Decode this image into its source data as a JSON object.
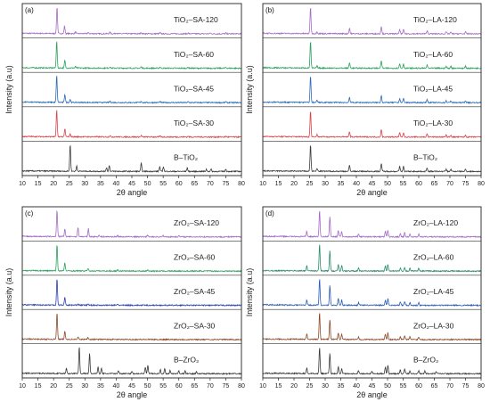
{
  "chart_data": [
    {
      "type": "line",
      "panel_tag": "(a)",
      "xlabel": "2θ angle",
      "ylabel": "Intensity (a.u)",
      "xlim": [
        10,
        80
      ],
      "xticks": [
        10,
        15,
        20,
        25,
        30,
        35,
        40,
        45,
        50,
        55,
        60,
        65,
        70,
        75,
        80
      ],
      "series": [
        {
          "name": "TiO₂–SA-120",
          "color": "#a56bc8",
          "peaks": [
            [
              21.1,
              1.0
            ],
            [
              23.5,
              0.28
            ],
            [
              27.0,
              0.06
            ],
            [
              31.0,
              0.04
            ],
            [
              38.0,
              0.05
            ],
            [
              40.0,
              0.04
            ],
            [
              48.0,
              0.05
            ],
            [
              54.0,
              0.04
            ],
            [
              63.0,
              0.03
            ],
            [
              70.0,
              0.03
            ],
            [
              75.0,
              0.03
            ]
          ]
        },
        {
          "name": "TiO₂–SA-60",
          "color": "#2ba35c",
          "peaks": [
            [
              21.0,
              1.0
            ],
            [
              23.6,
              0.28
            ],
            [
              27.0,
              0.05
            ],
            [
              38.0,
              0.05
            ],
            [
              48.0,
              0.05
            ],
            [
              54.0,
              0.04
            ],
            [
              63.0,
              0.03
            ],
            [
              75.0,
              0.03
            ]
          ]
        },
        {
          "name": "TiO₂–SA-45",
          "color": "#2a6cb8",
          "peaks": [
            [
              21.0,
              1.0
            ],
            [
              23.6,
              0.3
            ],
            [
              25.3,
              0.12
            ],
            [
              38.0,
              0.05
            ],
            [
              48.0,
              0.05
            ],
            [
              54.0,
              0.04
            ],
            [
              63.0,
              0.03
            ],
            [
              75.0,
              0.03
            ]
          ]
        },
        {
          "name": "TiO₂–SA-30",
          "color": "#d9434a",
          "peaks": [
            [
              21.0,
              1.0
            ],
            [
              23.6,
              0.3
            ],
            [
              25.3,
              0.1
            ],
            [
              38.0,
              0.05
            ],
            [
              48.0,
              0.05
            ],
            [
              54.0,
              0.04
            ],
            [
              63.0,
              0.03
            ],
            [
              75.0,
              0.03
            ]
          ]
        },
        {
          "name": "B–TiO₂",
          "color": "#3a3a3a",
          "peaks": [
            [
              25.3,
              1.0
            ],
            [
              27.4,
              0.2
            ],
            [
              36.9,
              0.14
            ],
            [
              37.8,
              0.22
            ],
            [
              48.0,
              0.3
            ],
            [
              53.9,
              0.18
            ],
            [
              55.1,
              0.18
            ],
            [
              62.7,
              0.14
            ],
            [
              68.8,
              0.08
            ],
            [
              70.3,
              0.08
            ],
            [
              75.0,
              0.08
            ]
          ]
        }
      ]
    },
    {
      "type": "line",
      "panel_tag": "(b)",
      "xlabel": "2θ angle",
      "ylabel": "Intensity (a.u)",
      "xlim": [
        10,
        80
      ],
      "xticks": [
        10,
        15,
        20,
        25,
        30,
        35,
        40,
        45,
        50,
        55,
        60,
        65,
        70,
        75,
        80
      ],
      "series": [
        {
          "name": "TiO₂–LA-120",
          "color": "#a56bc8",
          "peaks": [
            [
              25.3,
              1.0
            ],
            [
              27.4,
              0.08
            ],
            [
              37.8,
              0.2
            ],
            [
              48.0,
              0.28
            ],
            [
              53.9,
              0.16
            ],
            [
              55.1,
              0.16
            ],
            [
              62.7,
              0.12
            ],
            [
              68.8,
              0.07
            ],
            [
              70.3,
              0.07
            ],
            [
              75.0,
              0.07
            ]
          ]
        },
        {
          "name": "TiO₂–LA-60",
          "color": "#2ba35c",
          "peaks": [
            [
              25.3,
              1.0
            ],
            [
              27.4,
              0.08
            ],
            [
              37.8,
              0.2
            ],
            [
              48.0,
              0.28
            ],
            [
              53.9,
              0.16
            ],
            [
              55.1,
              0.16
            ],
            [
              62.7,
              0.12
            ],
            [
              68.8,
              0.07
            ],
            [
              70.3,
              0.07
            ],
            [
              75.0,
              0.07
            ]
          ]
        },
        {
          "name": "TiO₂–LA-45",
          "color": "#2a6cb8",
          "peaks": [
            [
              25.3,
              1.0
            ],
            [
              27.4,
              0.08
            ],
            [
              37.8,
              0.2
            ],
            [
              48.0,
              0.28
            ],
            [
              53.9,
              0.16
            ],
            [
              55.1,
              0.16
            ],
            [
              62.7,
              0.12
            ],
            [
              68.8,
              0.07
            ],
            [
              70.3,
              0.07
            ],
            [
              75.0,
              0.07
            ]
          ]
        },
        {
          "name": "TiO₂–LA-30",
          "color": "#d9434a",
          "peaks": [
            [
              25.3,
              1.0
            ],
            [
              27.4,
              0.08
            ],
            [
              37.8,
              0.2
            ],
            [
              48.0,
              0.28
            ],
            [
              53.9,
              0.16
            ],
            [
              55.1,
              0.16
            ],
            [
              62.7,
              0.12
            ],
            [
              68.8,
              0.07
            ],
            [
              70.3,
              0.07
            ],
            [
              75.0,
              0.07
            ]
          ]
        },
        {
          "name": "B–TiO₂",
          "color": "#3a3a3a",
          "peaks": [
            [
              25.3,
              1.0
            ],
            [
              27.4,
              0.1
            ],
            [
              37.8,
              0.22
            ],
            [
              48.0,
              0.3
            ],
            [
              53.9,
              0.18
            ],
            [
              55.1,
              0.18
            ],
            [
              62.7,
              0.14
            ],
            [
              68.8,
              0.08
            ],
            [
              70.3,
              0.08
            ],
            [
              75.0,
              0.08
            ]
          ]
        }
      ]
    },
    {
      "type": "line",
      "panel_tag": "(c)",
      "xlabel": "2θ angle",
      "ylabel": "Intensity (a.u)",
      "xlim": [
        10,
        80
      ],
      "xticks": [
        10,
        15,
        20,
        25,
        30,
        35,
        40,
        45,
        50,
        55,
        60,
        65,
        70,
        75,
        80
      ],
      "series": [
        {
          "name": "ZrO₂–SA-120",
          "color": "#a56bc8",
          "peaks": [
            [
              21.1,
              1.0
            ],
            [
              23.6,
              0.3
            ],
            [
              27.8,
              0.35
            ],
            [
              31.1,
              0.3
            ],
            [
              34.5,
              0.06
            ],
            [
              40.5,
              0.05
            ],
            [
              50.0,
              0.06
            ],
            [
              55.0,
              0.04
            ],
            [
              60.0,
              0.04
            ]
          ]
        },
        {
          "name": "ZrO₂–SA-60",
          "color": "#2ba35c",
          "peaks": [
            [
              21.1,
              1.0
            ],
            [
              23.6,
              0.3
            ],
            [
              31.0,
              0.1
            ],
            [
              40.5,
              0.04
            ],
            [
              50.0,
              0.04
            ]
          ]
        },
        {
          "name": "ZrO₂–SA-45",
          "color": "#2a3fb8",
          "peaks": [
            [
              21.1,
              1.0
            ],
            [
              23.6,
              0.3
            ],
            [
              27.8,
              0.05
            ],
            [
              31.0,
              0.05
            ],
            [
              40.5,
              0.04
            ]
          ]
        },
        {
          "name": "ZrO₂–SA-30",
          "color": "#8b4a2a",
          "peaks": [
            [
              21.1,
              1.0
            ],
            [
              23.6,
              0.3
            ],
            [
              27.8,
              0.08
            ],
            [
              31.0,
              0.08
            ]
          ]
        },
        {
          "name": "B–ZrO₂",
          "color": "#3a3a3a",
          "peaks": [
            [
              24.1,
              0.2
            ],
            [
              28.2,
              1.0
            ],
            [
              31.5,
              0.75
            ],
            [
              34.2,
              0.25
            ],
            [
              35.3,
              0.2
            ],
            [
              40.7,
              0.12
            ],
            [
              45.0,
              0.1
            ],
            [
              49.3,
              0.25
            ],
            [
              50.1,
              0.3
            ],
            [
              54.1,
              0.15
            ],
            [
              55.5,
              0.18
            ],
            [
              57.2,
              0.12
            ],
            [
              60.0,
              0.12
            ],
            [
              62.0,
              0.1
            ],
            [
              65.6,
              0.08
            ]
          ]
        }
      ]
    },
    {
      "type": "line",
      "panel_tag": "(d)",
      "xlabel": "2θ angle",
      "ylabel": "Intensity (a.u)",
      "xlim": [
        10,
        80
      ],
      "xticks": [
        10,
        15,
        20,
        25,
        30,
        35,
        40,
        45,
        50,
        55,
        60,
        65,
        70,
        75,
        80
      ],
      "series": [
        {
          "name": "ZrO₂–LA-120",
          "color": "#a56bc8",
          "peaks": [
            [
              24.1,
              0.2
            ],
            [
              28.2,
              1.0
            ],
            [
              31.5,
              0.75
            ],
            [
              34.2,
              0.25
            ],
            [
              35.3,
              0.2
            ],
            [
              40.7,
              0.1
            ],
            [
              49.3,
              0.2
            ],
            [
              50.1,
              0.25
            ],
            [
              54.1,
              0.12
            ],
            [
              55.5,
              0.14
            ],
            [
              57.2,
              0.1
            ],
            [
              60.0,
              0.1
            ]
          ]
        },
        {
          "name": "ZrO₂–LA-60",
          "color": "#2a8c6a",
          "peaks": [
            [
              24.1,
              0.2
            ],
            [
              28.2,
              1.0
            ],
            [
              31.5,
              0.75
            ],
            [
              34.2,
              0.25
            ],
            [
              35.3,
              0.2
            ],
            [
              40.7,
              0.1
            ],
            [
              49.3,
              0.2
            ],
            [
              50.1,
              0.25
            ],
            [
              54.1,
              0.12
            ],
            [
              55.5,
              0.14
            ],
            [
              57.2,
              0.1
            ],
            [
              60.0,
              0.1
            ]
          ]
        },
        {
          "name": "ZrO₂–LA-45",
          "color": "#2a5cb8",
          "peaks": [
            [
              24.1,
              0.2
            ],
            [
              28.2,
              1.0
            ],
            [
              31.5,
              0.75
            ],
            [
              34.2,
              0.25
            ],
            [
              35.3,
              0.2
            ],
            [
              40.7,
              0.1
            ],
            [
              49.3,
              0.2
            ],
            [
              50.1,
              0.25
            ],
            [
              54.1,
              0.12
            ],
            [
              55.5,
              0.14
            ],
            [
              57.2,
              0.1
            ],
            [
              60.0,
              0.1
            ]
          ]
        },
        {
          "name": "ZrO₂–LA-30",
          "color": "#8b4a2a",
          "peaks": [
            [
              24.1,
              0.2
            ],
            [
              28.2,
              1.0
            ],
            [
              31.5,
              0.75
            ],
            [
              34.2,
              0.25
            ],
            [
              35.3,
              0.2
            ],
            [
              40.7,
              0.1
            ],
            [
              49.3,
              0.2
            ],
            [
              50.1,
              0.25
            ],
            [
              54.1,
              0.12
            ],
            [
              55.5,
              0.14
            ],
            [
              57.2,
              0.1
            ],
            [
              60.0,
              0.1
            ]
          ]
        },
        {
          "name": "B–ZrO₂",
          "color": "#3a3a3a",
          "peaks": [
            [
              24.1,
              0.2
            ],
            [
              28.2,
              1.0
            ],
            [
              31.5,
              0.75
            ],
            [
              34.2,
              0.25
            ],
            [
              35.3,
              0.2
            ],
            [
              40.7,
              0.12
            ],
            [
              45.0,
              0.1
            ],
            [
              49.3,
              0.25
            ],
            [
              50.1,
              0.3
            ],
            [
              54.1,
              0.15
            ],
            [
              55.5,
              0.18
            ],
            [
              57.2,
              0.12
            ],
            [
              60.0,
              0.12
            ],
            [
              62.0,
              0.1
            ],
            [
              65.6,
              0.08
            ]
          ]
        }
      ]
    }
  ]
}
